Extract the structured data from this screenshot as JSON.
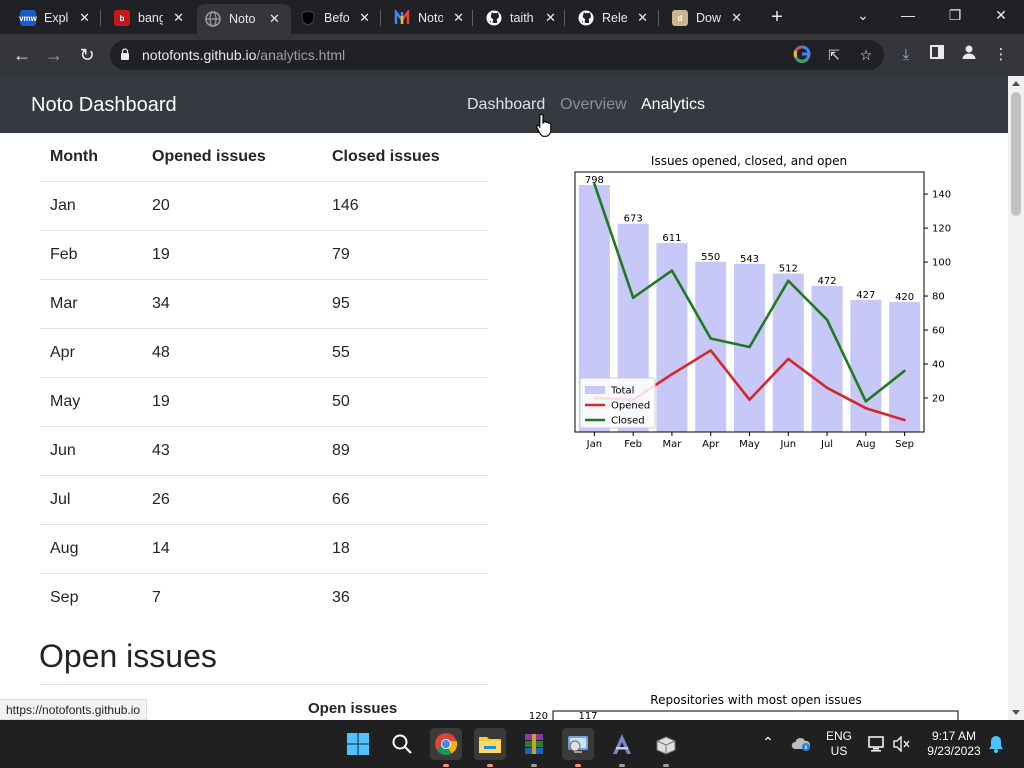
{
  "browser": {
    "tabs": [
      {
        "title": "Explore",
        "favicon": "vmw",
        "color": "#1d5ac9",
        "active": false
      },
      {
        "title": "bangl",
        "favicon": "b",
        "color": "#c21a1a",
        "active": false
      },
      {
        "title": "Noto",
        "favicon": "globe",
        "color": "#9aa0a6",
        "active": true
      },
      {
        "title": "Before",
        "favicon": "shield",
        "color": "#202124",
        "active": false
      },
      {
        "title": "Noto",
        "favicon": "n",
        "color": "#e8453c",
        "active": false
      },
      {
        "title": "taith",
        "favicon": "github",
        "color": "#ffffff",
        "active": false
      },
      {
        "title": "Relea",
        "favicon": "github",
        "color": "#ffffff",
        "active": false
      },
      {
        "title": "Down",
        "favicon": "d",
        "color": "#c9b58e",
        "active": false
      }
    ],
    "url_host": "notofonts.github.io",
    "url_path": "/analytics.html",
    "status_url": "https://notofonts.github.io"
  },
  "site": {
    "brand": "Noto Dashboard",
    "nav": [
      {
        "label": "Dashboard",
        "state": "hover"
      },
      {
        "label": "Overview",
        "state": "muted"
      },
      {
        "label": "Analytics",
        "state": "active"
      }
    ]
  },
  "issues_table": {
    "headers": [
      "Month",
      "Opened issues",
      "Closed issues"
    ],
    "rows": [
      [
        "Jan",
        "20",
        "146"
      ],
      [
        "Feb",
        "19",
        "79"
      ],
      [
        "Mar",
        "34",
        "95"
      ],
      [
        "Apr",
        "48",
        "55"
      ],
      [
        "May",
        "19",
        "50"
      ],
      [
        "Jun",
        "43",
        "89"
      ],
      [
        "Jul",
        "26",
        "66"
      ],
      [
        "Aug",
        "14",
        "18"
      ],
      [
        "Sep",
        "7",
        "36"
      ]
    ]
  },
  "open_issues": {
    "title": "Open issues",
    "column_header": "Open issues"
  },
  "chart_data": [
    {
      "type": "bar",
      "title": "Issues opened, closed, and open",
      "categories": [
        "Jan",
        "Feb",
        "Mar",
        "Apr",
        "May",
        "Jun",
        "Jul",
        "Aug",
        "Sep"
      ],
      "series": [
        {
          "name": "Total",
          "type": "bar",
          "values": [
            798,
            673,
            611,
            550,
            543,
            512,
            472,
            427,
            420
          ],
          "color": "#c8c8f8"
        },
        {
          "name": "Opened",
          "type": "line",
          "values": [
            20,
            19,
            34,
            48,
            19,
            43,
            26,
            14,
            7
          ],
          "color": "#d62728"
        },
        {
          "name": "Closed",
          "type": "line",
          "values": [
            146,
            79,
            95,
            55,
            50,
            89,
            66,
            18,
            36
          ],
          "color": "#1f7a1f"
        }
      ],
      "bar_labels": [
        "798",
        "673",
        "611",
        "550",
        "543",
        "512",
        "472",
        "427",
        "420"
      ],
      "y_right_ticks": [
        "20",
        "40",
        "60",
        "80",
        "100",
        "120",
        "140"
      ],
      "y_right_lim": [
        0,
        153
      ],
      "bar_lim": [
        0,
        840
      ],
      "legend": "lower-left"
    },
    {
      "type": "bar",
      "title": "Repositories with most open issues",
      "y_ticks": [
        "120"
      ],
      "bar_labels": [
        "117"
      ],
      "values": [
        117
      ]
    }
  ],
  "taskbar": {
    "lang": "ENG",
    "region": "US",
    "time": "9:17 AM",
    "date": "9/23/2023"
  }
}
